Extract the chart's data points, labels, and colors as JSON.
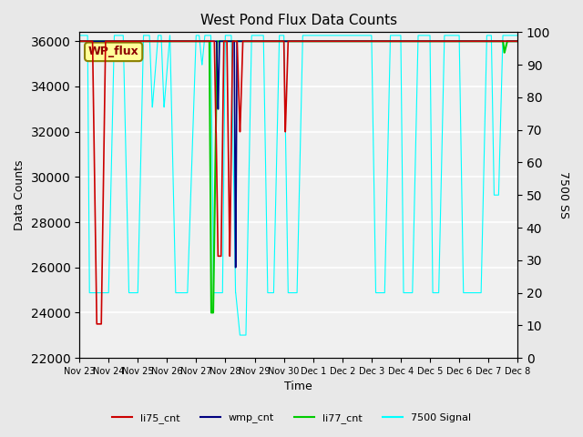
{
  "title": "West Pond Flux Data Counts",
  "xlabel": "Time",
  "ylabel_left": "Data Counts",
  "ylabel_right": "7500 SS",
  "ylim_left": [
    22000,
    36400
  ],
  "ylim_right": [
    0,
    100
  ],
  "yticks_left": [
    22000,
    24000,
    26000,
    28000,
    30000,
    32000,
    34000,
    36000
  ],
  "yticks_right": [
    0,
    10,
    20,
    30,
    40,
    50,
    60,
    70,
    80,
    90,
    100
  ],
  "bg_color": "#e8e8e8",
  "plot_bg_color": "#f0f0f0",
  "grid_color": "white",
  "annotation_text": "WP_flux",
  "annotation_color": "#8B0000",
  "annotation_bg": "#ffff99",
  "colors": {
    "li75_cnt": "#cc0000",
    "wmp_cnt": "#000080",
    "li77_cnt": "#00cc00",
    "signal7500": "cyan"
  },
  "legend_labels": [
    "li75_cnt",
    "wmp_cnt",
    "li77_cnt",
    "7500 Signal"
  ],
  "xtick_labels": [
    "Nov 23",
    "Nov 24",
    "Nov 25",
    "Nov 26",
    "Nov 27",
    "Nov 28",
    "Nov 29",
    "Nov 30",
    "Dec 1",
    "Dec 2",
    "Dec 3",
    "Dec 4",
    "Dec 5",
    "Dec 6",
    "Dec 7",
    "Dec 8"
  ]
}
